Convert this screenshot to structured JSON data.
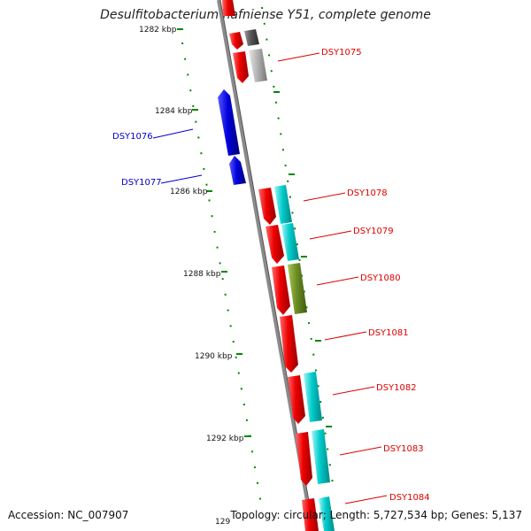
{
  "title": "Desulfitobacterium hafniense Y51, complete genome",
  "footer": {
    "accession": "Accession: NC_007907",
    "summary": "Topology: circular; Length: 5,727,534 bp; Genes: 5,137"
  },
  "ticks": [
    "1282 kbp",
    "1284 kbp",
    "1286 kbp",
    "1288 kbp",
    "1290 kbp",
    "1292 kbp",
    "129"
  ],
  "genes": [
    {
      "label": "DSY1075",
      "color": "#dd0000"
    },
    {
      "label": "DSY1076",
      "color": "#0000cc"
    },
    {
      "label": "DSY1077",
      "color": "#0000cc"
    },
    {
      "label": "DSY1078",
      "color": "#dd0000"
    },
    {
      "label": "DSY1079",
      "color": "#dd0000"
    },
    {
      "label": "DSY1080",
      "color": "#dd0000"
    },
    {
      "label": "DSY1081",
      "color": "#dd0000"
    },
    {
      "label": "DSY1082",
      "color": "#dd0000"
    },
    {
      "label": "DSY1083",
      "color": "#dd0000"
    },
    {
      "label": "DSY1084",
      "color": "#dd0000"
    }
  ],
  "colors": {
    "backbone": "#888888",
    "forward_gene": "#dd0000",
    "reverse_gene": "#0000cc",
    "cds_cyan": "#00c8c8",
    "cds_olive": "#6b8e23",
    "cds_gray": "#aaaaaa",
    "cds_dark": "#555555",
    "tick_green": "#008800"
  }
}
